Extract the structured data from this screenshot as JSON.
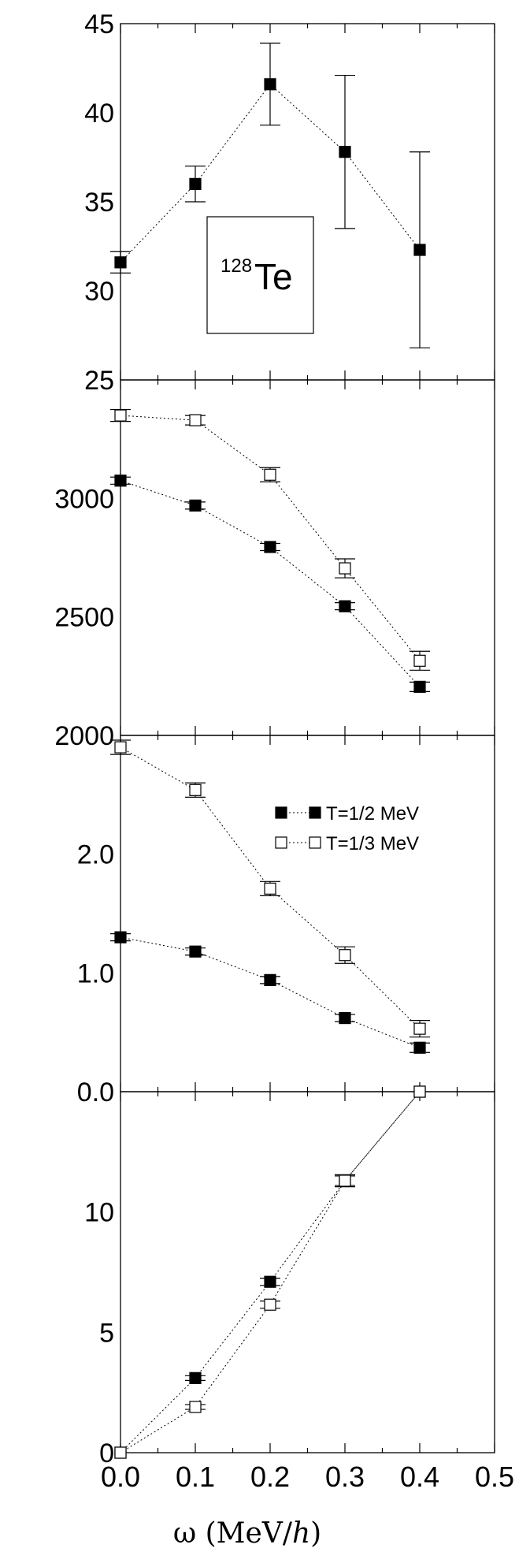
{
  "chart_data": [
    {
      "type": "line",
      "ylim": [
        25,
        45
      ],
      "yticks": [
        "25",
        "30",
        "35",
        "40",
        "45"
      ],
      "annotation": {
        "sup": "128",
        "main": "Te"
      },
      "series": [
        {
          "marker": "filled",
          "x": [
            0.0,
            0.1,
            0.2,
            0.3,
            0.4
          ],
          "y": [
            31.6,
            36.0,
            41.6,
            37.8,
            32.3
          ],
          "err": [
            0.6,
            1.0,
            2.3,
            4.3,
            5.5
          ]
        }
      ]
    },
    {
      "type": "line",
      "ylim": [
        2000,
        3500
      ],
      "yticks": [
        "2000",
        "2500",
        "3000"
      ],
      "series": [
        {
          "marker": "filled",
          "x": [
            0.0,
            0.1,
            0.2,
            0.3,
            0.4
          ],
          "y": [
            3075,
            2970,
            2795,
            2545,
            2205
          ],
          "err": [
            15,
            15,
            15,
            15,
            20
          ]
        },
        {
          "marker": "open",
          "x": [
            0.0,
            0.1,
            0.2,
            0.3,
            0.4
          ],
          "y": [
            3350,
            3330,
            3100,
            2705,
            2315
          ],
          "err": [
            25,
            20,
            30,
            40,
            40
          ]
        }
      ]
    },
    {
      "type": "line",
      "ylim": [
        0.0,
        3.0
      ],
      "yticks": [
        "0.0",
        "1.0",
        "2.0"
      ],
      "legend": {
        "position": "upper-right",
        "entries": [
          {
            "label": "T=1/2 MeV",
            "marker": "filled"
          },
          {
            "label": "T=1/3 MeV",
            "marker": "open"
          }
        ]
      },
      "series": [
        {
          "marker": "filled",
          "x": [
            0.0,
            0.1,
            0.2,
            0.3,
            0.4
          ],
          "y": [
            1.3,
            1.18,
            0.94,
            0.62,
            0.37
          ],
          "err": [
            0.03,
            0.03,
            0.03,
            0.03,
            0.04
          ]
        },
        {
          "marker": "open",
          "x": [
            0.0,
            0.1,
            0.2,
            0.3,
            0.4
          ],
          "y": [
            2.9,
            2.54,
            1.71,
            1.15,
            0.53
          ],
          "err": [
            0.06,
            0.06,
            0.06,
            0.07,
            0.07
          ]
        }
      ]
    },
    {
      "type": "line",
      "ylim": [
        0,
        15
      ],
      "yticks": [
        "0",
        "5",
        "10"
      ],
      "xlim": [
        0.0,
        0.5
      ],
      "xticks": [
        "0.0",
        "0.1",
        "0.2",
        "0.3",
        "0.4",
        "0.5"
      ],
      "xlabel": "ω (MeV/h)",
      "series": [
        {
          "marker": "filled",
          "x": [
            0.0,
            0.1,
            0.2,
            0.3,
            0.4
          ],
          "y": [
            0.0,
            3.1,
            7.1,
            11.3,
            15.0
          ],
          "err": [
            0.0,
            0.1,
            0.15,
            0.2,
            0.0
          ]
        },
        {
          "marker": "open",
          "x": [
            0.0,
            0.1,
            0.2,
            0.3,
            0.4
          ],
          "y": [
            0.0,
            1.9,
            6.15,
            11.3,
            15.0
          ],
          "err": [
            0.0,
            0.1,
            0.15,
            0.25,
            0.0
          ]
        }
      ]
    }
  ]
}
